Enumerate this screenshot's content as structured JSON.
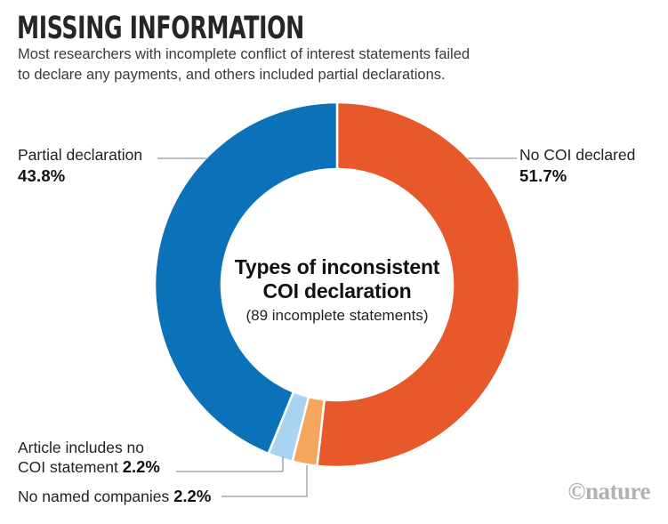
{
  "header": {
    "title": "MISSING INFORMATION",
    "subtitle_line1": "Most researchers with incomplete conflict of interest statements failed",
    "subtitle_line2": "to declare any payments, and others included partial declarations."
  },
  "chart_data": {
    "type": "pie",
    "variant": "donut",
    "direction": "clockwise",
    "start_angle_deg": 0,
    "unit": "%",
    "segments": [
      {
        "label": "No COI declared",
        "value": 51.7,
        "color": "#E7582B"
      },
      {
        "label": "No named companies",
        "value": 2.2,
        "color": "#F5A55C"
      },
      {
        "label": "Article includes no COI statement",
        "value": 2.2,
        "color": "#A8D4F2"
      },
      {
        "label": "Partial declaration",
        "value": 43.8,
        "color": "#0B72B9"
      }
    ],
    "center_label": {
      "line1": "Types of inconsistent",
      "line2": "COI declaration",
      "line3": "(89 incomplete statements)"
    }
  },
  "callouts": {
    "partial": {
      "label": "Partial declaration",
      "value": "43.8%"
    },
    "no_coi": {
      "label": "No COI declared",
      "value": "51.7%"
    },
    "article": {
      "label_line1": "Article includes no",
      "label_line2": "COI statement ",
      "value": "2.2%"
    },
    "companies": {
      "label": "No named companies ",
      "value": "2.2%"
    }
  },
  "colors": {
    "leader_line": "#999999",
    "title_text": "#262626",
    "watermark_text": "#b1b1b1"
  },
  "watermark": "©nature"
}
